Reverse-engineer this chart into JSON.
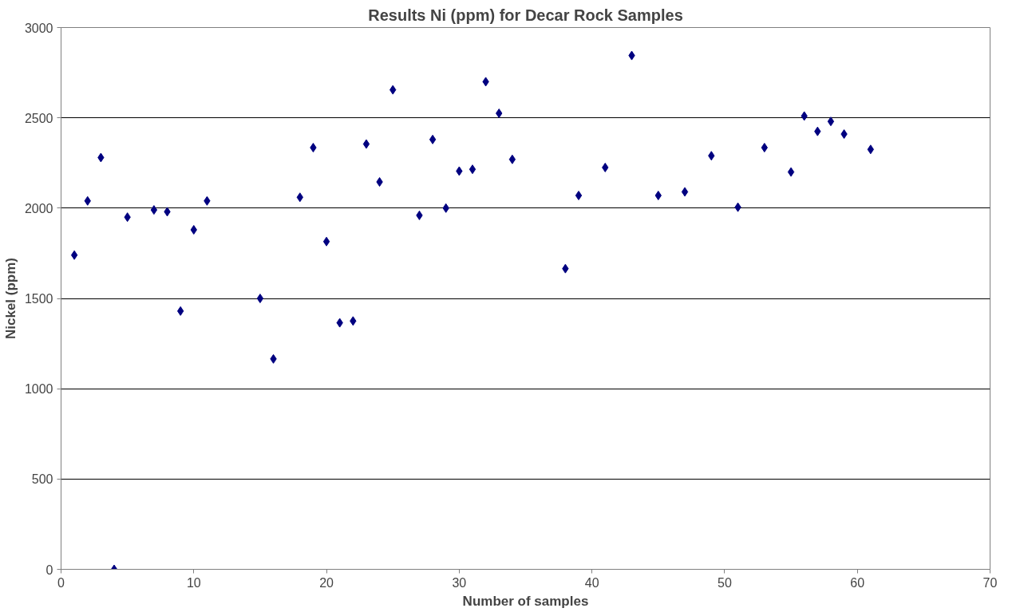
{
  "chart_data": {
    "type": "scatter",
    "title": "Results Ni (ppm) for Decar Rock Samples",
    "xlabel": "Number of samples",
    "ylabel": "Nickel (ppm)",
    "x": [
      1,
      2,
      3,
      4,
      5,
      7,
      8,
      9,
      10,
      11,
      15,
      16,
      18,
      19,
      20,
      21,
      22,
      23,
      24,
      25,
      27,
      28,
      29,
      30,
      31,
      32,
      33,
      34,
      38,
      39,
      41,
      43,
      45,
      47,
      49,
      51,
      53,
      55,
      56,
      57,
      58,
      59,
      61
    ],
    "series": [
      {
        "color": "#000080",
        "values": [
          1740,
          2040,
          2280,
          0,
          1950,
          1990,
          1980,
          1430,
          1880,
          2040,
          1500,
          1165,
          2060,
          2335,
          1815,
          1365,
          1375,
          2355,
          2145,
          2655,
          1960,
          2380,
          2000,
          2205,
          2215,
          2700,
          2525,
          2270,
          1665,
          2070,
          2225,
          2845,
          2070,
          2090,
          2290,
          2005,
          2335,
          2200,
          2510,
          2425,
          2480,
          2410,
          2325
        ]
      }
    ],
    "xlim": [
      0,
      70
    ],
    "xticks": [
      0,
      10,
      20,
      30,
      40,
      50,
      60,
      70
    ],
    "ylim": [
      0,
      3000
    ],
    "yticks": [
      0,
      500,
      1000,
      1500,
      2000,
      2500,
      3000
    ],
    "grid": "y",
    "marker": "diamond"
  }
}
